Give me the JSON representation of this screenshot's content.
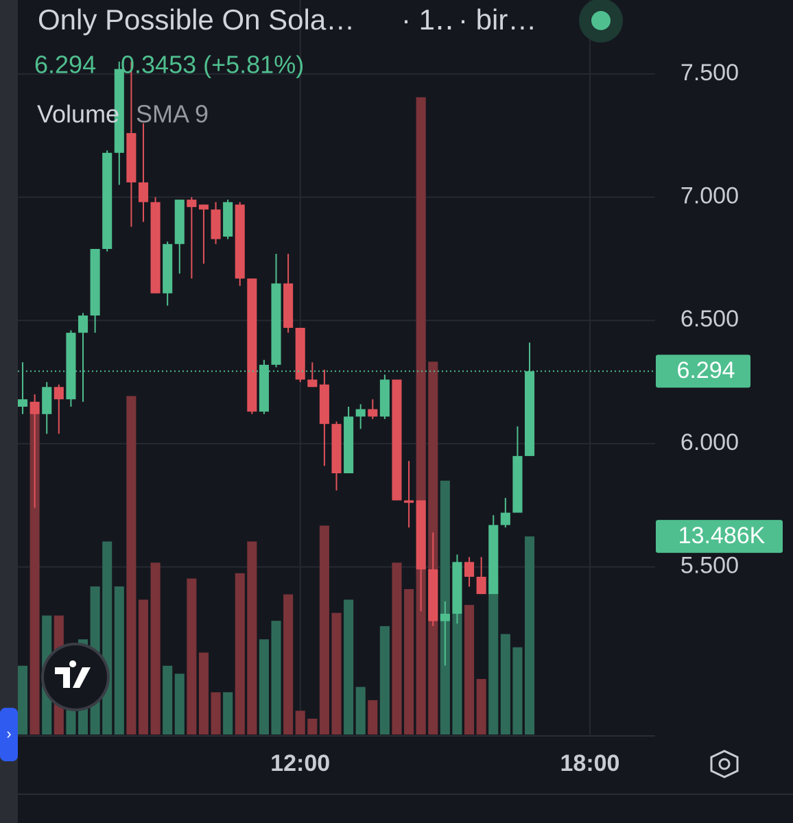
{
  "chart_data": {
    "type": "candlestick",
    "title": "Only Possible On Sola…",
    "interval": "· 1‥",
    "exchange": "· bir…",
    "last_price": 6.294,
    "change": "0.3453 (+5.81%)",
    "volume_title": "Volume",
    "volume_indicator": "SMA 9",
    "up_color": "#4fbf8f",
    "down_color": "#e0525a",
    "up_volume_color": "#2f6b59",
    "down_volume_color": "#7a343a",
    "x": [
      6.25,
      6.5,
      6.75,
      7,
      7.25,
      7.5,
      7.75,
      8,
      8.25,
      8.5,
      8.75,
      9,
      9.25,
      9.5,
      9.75,
      10,
      10.25,
      10.5,
      10.75,
      11,
      11.25,
      11.5,
      11.75,
      12,
      12.25,
      12.5,
      12.75,
      13,
      13.25,
      13.5,
      13.75,
      14,
      14.25,
      14.5,
      14.75,
      15,
      15.25,
      15.5,
      15.75,
      16,
      16.25,
      16.5,
      16.75
    ],
    "open": [
      6.15,
      6.17,
      6.12,
      6.23,
      6.18,
      6.45,
      6.52,
      6.79,
      7.18,
      7.26,
      7.06,
      6.98,
      6.61,
      6.81,
      6.99,
      6.97,
      6.95,
      6.84,
      6.97,
      6.67,
      6.13,
      6.32,
      6.65,
      6.47,
      6.26,
      6.24,
      6.08,
      5.88,
      6.11,
      6.14,
      6.11,
      6.26,
      5.77,
      5.77,
      5.49,
      5.28,
      5.31,
      5.52,
      5.46,
      5.39,
      5.67,
      5.72,
      5.95
    ],
    "high": [
      6.33,
      6.2,
      6.25,
      6.24,
      6.46,
      6.53,
      6.79,
      7.19,
      7.55,
      7.55,
      7.3,
      7.0,
      6.82,
      6.99,
      7.0,
      6.97,
      6.98,
      6.99,
      6.98,
      6.67,
      6.34,
      6.77,
      6.77,
      6.47,
      6.33,
      6.3,
      6.09,
      6.15,
      6.16,
      6.18,
      6.28,
      6.26,
      5.93,
      5.77,
      5.64,
      5.36,
      5.55,
      5.54,
      5.54,
      5.71,
      5.78,
      6.07,
      6.41
    ],
    "low": [
      6.12,
      5.74,
      6.04,
      6.04,
      6.15,
      6.17,
      6.45,
      6.78,
      7.05,
      6.88,
      6.9,
      6.61,
      6.56,
      6.69,
      6.67,
      6.73,
      6.81,
      6.83,
      6.64,
      6.12,
      6.12,
      6.31,
      6.45,
      6.25,
      6.23,
      5.91,
      5.81,
      5.88,
      6.06,
      6.1,
      6.1,
      5.77,
      5.66,
      5.32,
      5.26,
      5.1,
      5.27,
      5.42,
      5.39,
      5.39,
      5.66,
      5.72,
      5.95
    ],
    "close": [
      6.18,
      6.12,
      6.23,
      6.18,
      6.45,
      6.52,
      6.79,
      7.18,
      7.52,
      7.06,
      6.98,
      6.61,
      6.81,
      6.99,
      6.96,
      6.95,
      6.83,
      6.98,
      6.67,
      6.13,
      6.32,
      6.65,
      6.47,
      6.26,
      6.23,
      6.08,
      5.88,
      6.11,
      6.14,
      6.11,
      6.26,
      5.77,
      5.76,
      5.49,
      5.28,
      5.31,
      5.52,
      5.46,
      5.39,
      5.67,
      5.72,
      5.95,
      6.294
    ],
    "volume": [
      4680,
      22140,
      8100,
      8100,
      4680,
      6480,
      10080,
      13140,
      10080,
      23040,
      9180,
      11700,
      4680,
      4140,
      10620,
      5580,
      2880,
      2880,
      10980,
      13140,
      6480,
      7740,
      9540,
      1620,
      1080,
      14220,
      8280,
      9180,
      3240,
      2340,
      7380,
      11700,
      9900,
      43380,
      25380,
      17280,
      11700,
      8820,
      3780,
      10620,
      6840,
      5940,
      13486
    ],
    "last_volume": {
      "value": 13486,
      "label": "13.486K"
    },
    "xlim": [
      6.15,
      19.35
    ],
    "ylim": [
      4.82,
      7.8
    ],
    "volume_ylim": [
      0,
      50000
    ],
    "xticks": [
      {
        "value": 12,
        "label": "12:00"
      },
      {
        "value": 18,
        "label": "18:00"
      }
    ],
    "yticks": [
      {
        "value": 5.5,
        "label": "5.500"
      },
      {
        "value": 6,
        "label": "6.000"
      },
      {
        "value": 6.5,
        "label": "6.500"
      },
      {
        "value": 7,
        "label": "7.000"
      },
      {
        "value": 7.5,
        "label": "7.500"
      }
    ],
    "grid": true
  }
}
